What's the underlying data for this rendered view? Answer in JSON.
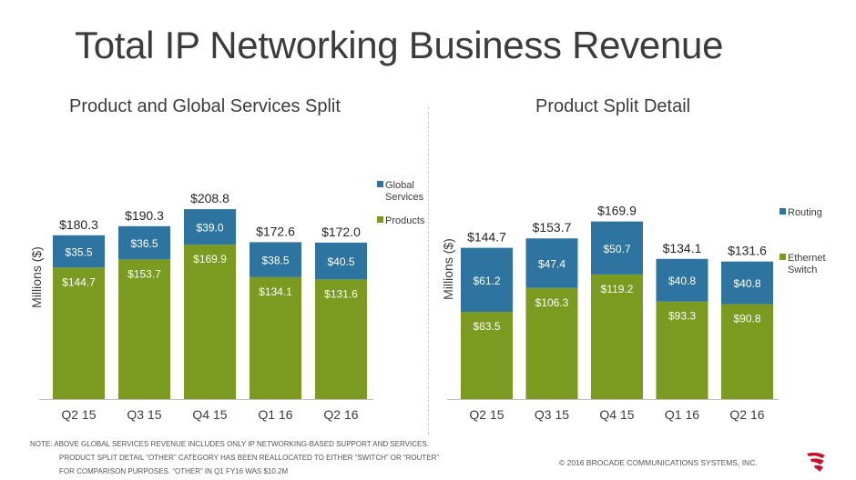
{
  "page_title": "Total IP Networking Business Revenue",
  "chart_data": [
    {
      "type": "bar",
      "stacked": true,
      "title": "Product and Global Services Split",
      "ylabel": "Millions ($)",
      "xlabel": "",
      "ylim": [
        0,
        240
      ],
      "grid": false,
      "legend_position": "right",
      "categories": [
        "Q2 15",
        "Q3 15",
        "Q4 15",
        "Q1 16",
        "Q2 16"
      ],
      "series": [
        {
          "name": "Products",
          "color": "#7a9a20",
          "values": [
            144.7,
            153.7,
            169.9,
            134.1,
            131.6
          ],
          "labels": [
            "$144.7",
            "$153.7",
            "$169.9",
            "$134.1",
            "$131.6"
          ]
        },
        {
          "name": "Global Services",
          "color": "#2e74a0",
          "values": [
            35.5,
            36.5,
            39.0,
            38.5,
            40.5
          ],
          "labels": [
            "$35.5",
            "$36.5",
            "$39.0",
            "$38.5",
            "$40.5"
          ]
        }
      ],
      "totals": [
        180.3,
        190.3,
        208.8,
        172.6,
        172.0
      ],
      "total_labels": [
        "$180.3",
        "$190.3",
        "$208.8",
        "$172.6",
        "$172.0"
      ],
      "legend": [
        {
          "lines": [
            "Global",
            "Services"
          ],
          "color": "#2e74a0"
        },
        {
          "lines": [
            "Products"
          ],
          "color": "#7a9a20"
        }
      ]
    },
    {
      "type": "bar",
      "stacked": true,
      "title": "Product Split Detail",
      "ylabel": "Millions ($)",
      "xlabel": "",
      "ylim": [
        0,
        200
      ],
      "grid": false,
      "legend_position": "right",
      "categories": [
        "Q2 15",
        "Q3 15",
        "Q4 15",
        "Q1 16",
        "Q2 16"
      ],
      "series": [
        {
          "name": "Ethernet Switch",
          "color": "#7a9a20",
          "values": [
            83.5,
            106.3,
            119.2,
            93.3,
            90.8
          ],
          "labels": [
            "$83.5",
            "$106.3",
            "$119.2",
            "$93.3",
            "$90.8"
          ]
        },
        {
          "name": "Routing",
          "color": "#2e74a0",
          "values": [
            61.2,
            47.4,
            50.7,
            40.8,
            40.8
          ],
          "labels": [
            "$61.2",
            "$47.4",
            "$50.7",
            "$40.8",
            "$40.8"
          ]
        }
      ],
      "totals": [
        144.7,
        153.7,
        169.9,
        134.1,
        131.6
      ],
      "total_labels": [
        "$144.7",
        "$153.7",
        "$169.9",
        "$134.1",
        "$131.6"
      ],
      "legend": [
        {
          "lines": [
            "Routing"
          ],
          "color": "#2e74a0"
        },
        {
          "lines": [
            "Ethernet",
            "Switch"
          ],
          "color": "#7a9a20"
        }
      ]
    }
  ],
  "footer": {
    "note_line1": "NOTE:  ABOVE GLOBAL SERVICES REVENUE INCLUDES ONLY IP NETWORKING-BASED SUPPORT AND SERVICES.",
    "note_line2": "PRODUCT SPLIT DETAIL “OTHER” CATEGORY HAS BEEN REALLOCATED TO EITHER “SWITCH” OR “ROUTER”",
    "note_line3": "FOR COMPARISON PURPOSES. “OTHER” IN Q1 FY16 WAS $10.2M",
    "copyright": "© 2016 BROCADE COMMUNICATIONS SYSTEMS, INC."
  },
  "brand_color": "#c8102e"
}
